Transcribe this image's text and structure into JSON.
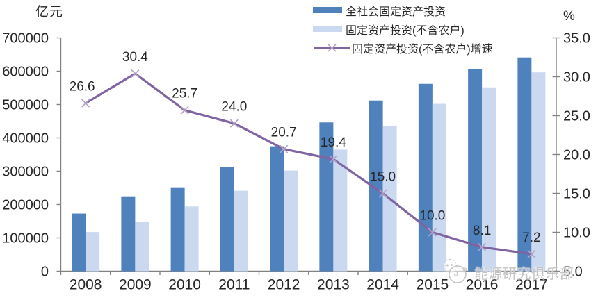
{
  "chart_data": {
    "type": "bar+line",
    "title": "",
    "categories": [
      "2008",
      "2009",
      "2010",
      "2011",
      "2012",
      "2013",
      "2014",
      "2015",
      "2016",
      "2017"
    ],
    "series": [
      {
        "name": "全社会固定资产投资",
        "type": "bar",
        "axis": "left",
        "color": "#4F81BD",
        "values": [
          172828,
          224599,
          251684,
          311485,
          374695,
          446294,
          512021,
          561999,
          606466,
          641238
        ]
      },
      {
        "name": "固定资产投资(不含农户)",
        "type": "bar",
        "axis": "left",
        "color": "#CBD9F0",
        "values": [
          117464,
          148738,
          194139,
          241415,
          301933,
          364835,
          436528,
          502005,
          551590,
          596501
        ]
      },
      {
        "name": "固定资产投资(不含农户)增速",
        "type": "line",
        "axis": "right",
        "color": "#8064A2",
        "marker": "x",
        "marker_color": "#B3A2C7",
        "values": [
          26.6,
          30.4,
          25.7,
          24.0,
          20.7,
          19.4,
          15.0,
          10.0,
          8.1,
          7.2
        ],
        "point_labels": [
          "26.6",
          "30.4",
          "25.7",
          "24.0",
          "20.7",
          "19.4",
          "15.0",
          "10.0",
          "8.1",
          "7.2"
        ]
      }
    ],
    "left_axis": {
      "title": "亿元",
      "min": 0,
      "max": 700000,
      "tick_step": 100000,
      "tick_labels": [
        "0",
        "100000",
        "200000",
        "300000",
        "400000",
        "500000",
        "600000",
        "700000"
      ]
    },
    "right_axis": {
      "title": "%",
      "min": 5,
      "max": 35,
      "tick_step": 5,
      "tick_labels": [
        "5.0",
        "10.0",
        "15.0",
        "20.0",
        "25.0",
        "30.0",
        "35.0"
      ]
    },
    "legend_position": "top",
    "grid": false,
    "axis_color": "#828282",
    "text_color": "#262626"
  },
  "watermark": {
    "text": "能源研究俱乐部",
    "logo": "chat-face-logo",
    "color": "#c3c3c3"
  }
}
